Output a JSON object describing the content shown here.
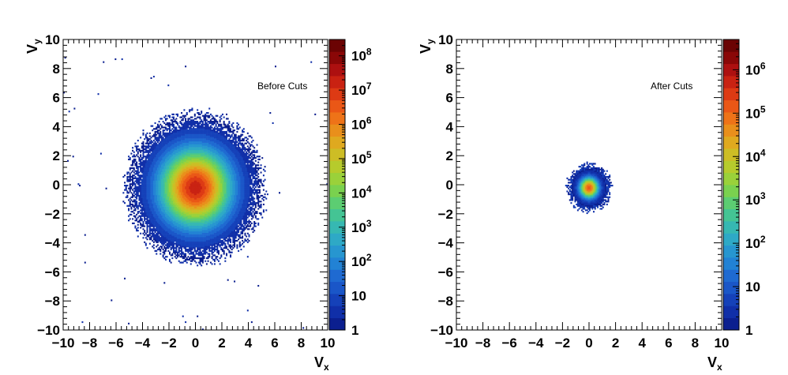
{
  "chart_data": [
    {
      "type": "heatmap",
      "annotation": "Before Cuts",
      "xlabel": "V",
      "xlabel_sub": "x",
      "ylabel": "V",
      "ylabel_sub": "y",
      "xlim": [
        -10,
        10
      ],
      "ylim": [
        -10,
        10
      ],
      "xticks": [
        "−10",
        "−8",
        "−6",
        "−4",
        "−2",
        "0",
        "2",
        "4",
        "6",
        "8",
        "10"
      ],
      "yticks": [
        "−10",
        "−8",
        "−6",
        "−4",
        "−2",
        "0",
        "2",
        "4",
        "6",
        "8",
        "10"
      ],
      "color_scale": "log",
      "zlim": [
        1,
        300000000
      ],
      "colorbar_labels": [
        {
          "base": "1",
          "exp": ""
        },
        {
          "base": "10",
          "exp": ""
        },
        {
          "base": "10",
          "exp": "2"
        },
        {
          "base": "10",
          "exp": "3"
        },
        {
          "base": "10",
          "exp": "4"
        },
        {
          "base": "10",
          "exp": "5"
        },
        {
          "base": "10",
          "exp": "6"
        },
        {
          "base": "10",
          "exp": "7"
        },
        {
          "base": "10",
          "exp": "8"
        }
      ],
      "colorbar_values": [
        1,
        10,
        100,
        1000,
        10000,
        100000,
        1000000,
        10000000,
        100000000
      ],
      "distribution": {
        "center_x": 0.0,
        "center_y": -0.2,
        "peak_count": 300000000,
        "core_sigma": 0.12,
        "halo_sigma": 1.9,
        "extent_radius": 5.6
      }
    },
    {
      "type": "heatmap",
      "annotation": "After Cuts",
      "xlabel": "V",
      "xlabel_sub": "x",
      "ylabel": "V",
      "ylabel_sub": "y",
      "xlim": [
        -10,
        10
      ],
      "ylim": [
        -10,
        10
      ],
      "xticks": [
        "−10",
        "−8",
        "−6",
        "−4",
        "−2",
        "0",
        "2",
        "4",
        "6",
        "8",
        "10"
      ],
      "yticks": [
        "−10",
        "−8",
        "−6",
        "−4",
        "−2",
        "0",
        "2",
        "4",
        "6",
        "8",
        "10"
      ],
      "color_scale": "log",
      "zlim": [
        1,
        5000000
      ],
      "colorbar_labels": [
        {
          "base": "1",
          "exp": ""
        },
        {
          "base": "10",
          "exp": ""
        },
        {
          "base": "10",
          "exp": "2"
        },
        {
          "base": "10",
          "exp": "3"
        },
        {
          "base": "10",
          "exp": "4"
        },
        {
          "base": "10",
          "exp": "5"
        },
        {
          "base": "10",
          "exp": "6"
        }
      ],
      "colorbar_values": [
        1,
        10,
        100,
        1000,
        10000,
        100000,
        1000000
      ],
      "distribution": {
        "center_x": 0.0,
        "center_y": -0.2,
        "peak_count": 3000000,
        "core_sigma": 0.1,
        "halo_sigma": 0.5,
        "extent_radius": 1.8
      }
    }
  ]
}
